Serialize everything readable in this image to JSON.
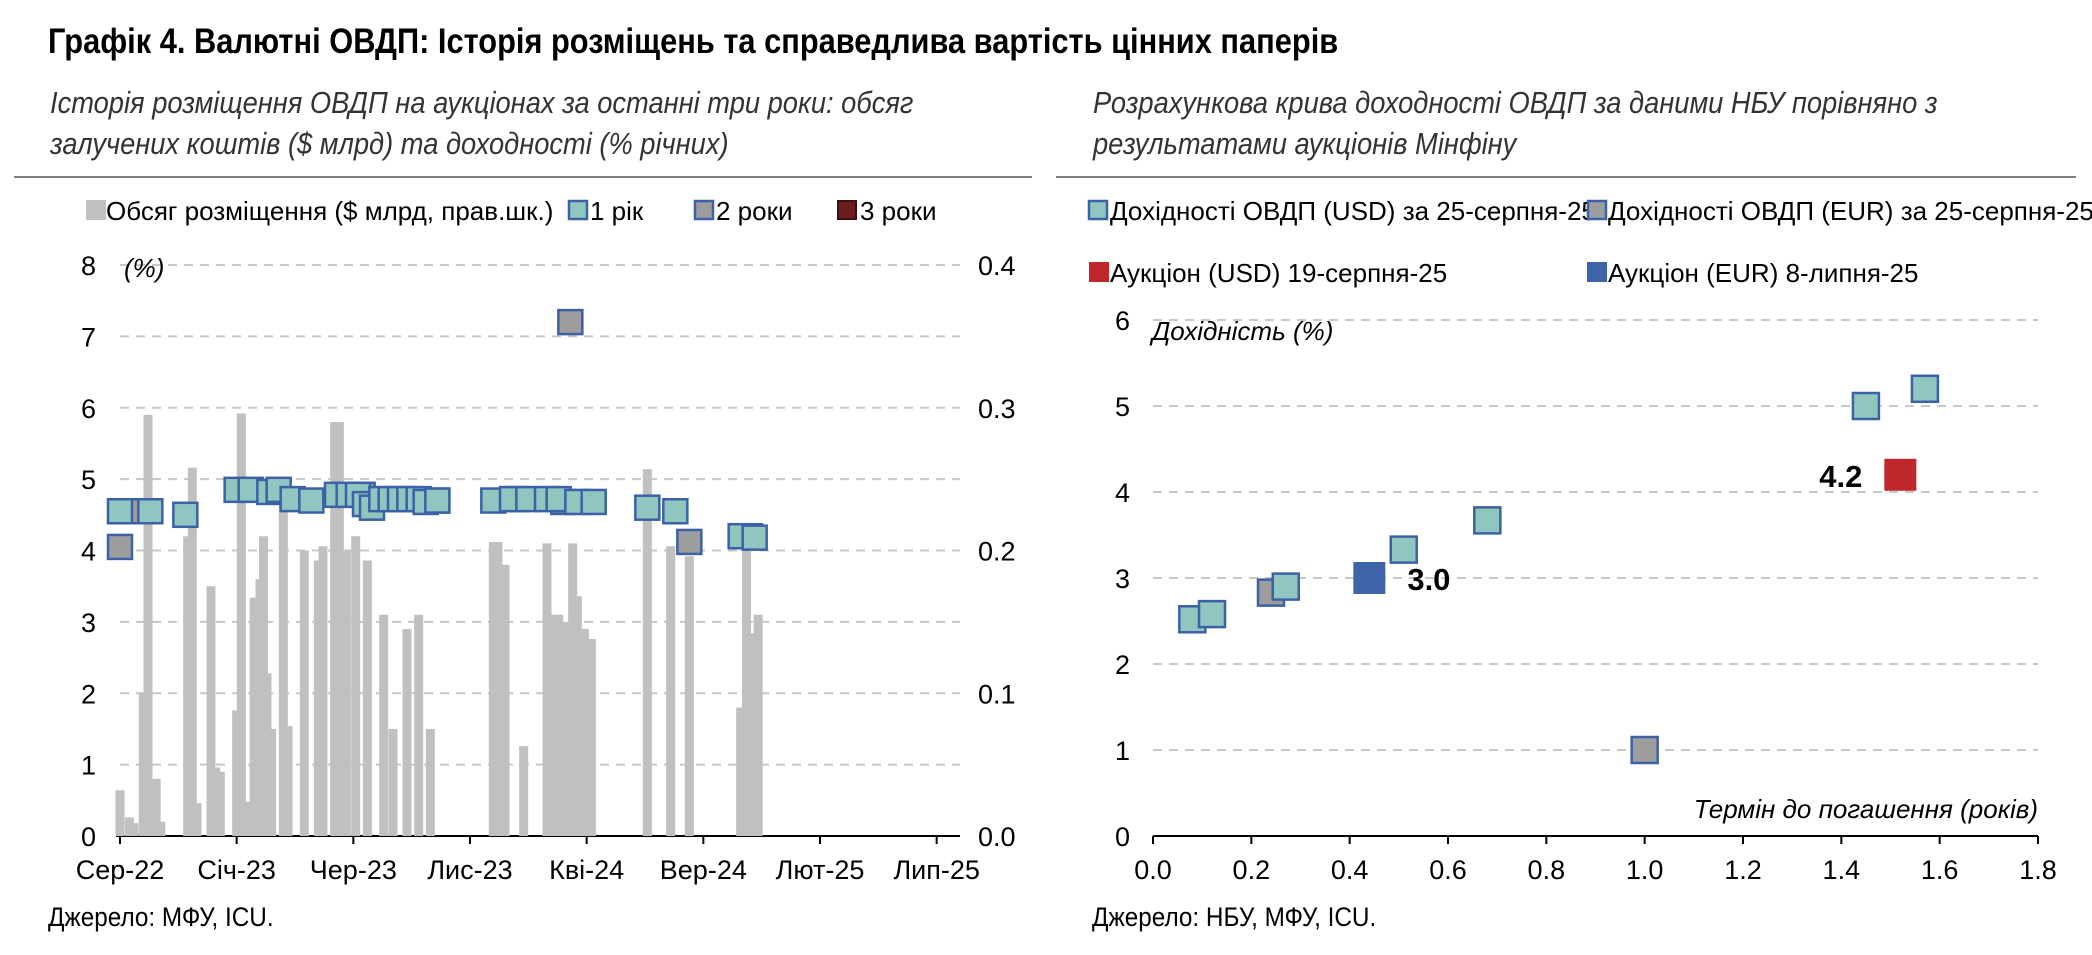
{
  "title": "Графік 4. Валютні ОВДП: Історія розміщень та справедлива вартість цінних паперів",
  "left": {
    "subtitle": "Історія розміщення ОВДП на аукціонах за останні три роки: обсяг залучених коштів ($ млрд) та доходності (% річних)",
    "source": "Джерело: МФУ, ICU."
  },
  "right": {
    "subtitle": "Розрахункова крива доходності ОВДП за даними НБУ порівняно з результатами аукціонів Мінфіну",
    "source": "Джерело: НБУ, МФУ, ICU."
  },
  "colors": {
    "bar": "#c0c0c0",
    "usd_fill": "#8fc6bf",
    "eur_fill": "#9d9d9d",
    "marker_edge": "#3c61a6",
    "three_year": "#6b1d1d",
    "auction_usd": "#c0272d",
    "auction_eur": "#3e63a8",
    "grid": "#c8c8c8"
  },
  "chart_data": [
    {
      "type": "scatter",
      "description_unit": "% / $ млрд",
      "ylabel": "(%)",
      "ylim": [
        0,
        8
      ],
      "yticks": [
        "0",
        "1",
        "2",
        "3",
        "4",
        "5",
        "6",
        "7",
        "8"
      ],
      "y2lim": [
        0,
        0.4
      ],
      "y2ticks": [
        "0.0",
        "0.1",
        "0.2",
        "0.3",
        "0.4"
      ],
      "x_categories": [
        "Сер-22",
        "Січ-23",
        "Чер-23",
        "Лис-23",
        "Кві-24",
        "Вер-24",
        "Лют-25",
        "Лип-25"
      ],
      "xlim_months": [
        0,
        36
      ],
      "legend": {
        "volume": "Обсяг розміщення ($ млрд, прав.шк.)",
        "y1": "1 рік",
        "y2": "2 роки",
        "y3": "3 роки"
      },
      "volume_series": [
        {
          "t": 0.0,
          "v": 0.032
        },
        {
          "t": 0.4,
          "v": 0.013
        },
        {
          "t": 0.6,
          "v": 0.009
        },
        {
          "t": 1.0,
          "v": 0.1
        },
        {
          "t": 1.2,
          "v": 0.295
        },
        {
          "t": 1.55,
          "v": 0.04
        },
        {
          "t": 1.75,
          "v": 0.01
        },
        {
          "t": 2.9,
          "v": 0.21
        },
        {
          "t": 3.1,
          "v": 0.258
        },
        {
          "t": 3.3,
          "v": 0.023
        },
        {
          "t": 3.9,
          "v": 0.175
        },
        {
          "t": 4.1,
          "v": 0.048
        },
        {
          "t": 4.3,
          "v": 0.045
        },
        {
          "t": 5.0,
          "v": 0.088
        },
        {
          "t": 5.2,
          "v": 0.296
        },
        {
          "t": 5.45,
          "v": 0.024
        },
        {
          "t": 5.75,
          "v": 0.167
        },
        {
          "t": 6.0,
          "v": 0.18
        },
        {
          "t": 6.15,
          "v": 0.21
        },
        {
          "t": 6.3,
          "v": 0.114
        },
        {
          "t": 6.5,
          "v": 0.075
        },
        {
          "t": 7.0,
          "v": 0.245
        },
        {
          "t": 7.2,
          "v": 0.077
        },
        {
          "t": 7.9,
          "v": 0.2
        },
        {
          "t": 8.5,
          "v": 0.193
        },
        {
          "t": 8.7,
          "v": 0.203
        },
        {
          "t": 9.2,
          "v": 0.29
        },
        {
          "t": 9.4,
          "v": 0.29
        },
        {
          "t": 9.7,
          "v": 0.2
        },
        {
          "t": 10.1,
          "v": 0.21
        },
        {
          "t": 10.6,
          "v": 0.193
        },
        {
          "t": 11.3,
          "v": 0.155
        },
        {
          "t": 11.7,
          "v": 0.075
        },
        {
          "t": 12.3,
          "v": 0.145
        },
        {
          "t": 12.8,
          "v": 0.155
        },
        {
          "t": 13.3,
          "v": 0.075
        },
        {
          "t": 16.0,
          "v": 0.206
        },
        {
          "t": 16.2,
          "v": 0.206
        },
        {
          "t": 16.5,
          "v": 0.19
        },
        {
          "t": 17.3,
          "v": 0.063
        },
        {
          "t": 18.3,
          "v": 0.205
        },
        {
          "t": 18.5,
          "v": 0.155
        },
        {
          "t": 18.8,
          "v": 0.155
        },
        {
          "t": 19.1,
          "v": 0.15
        },
        {
          "t": 19.4,
          "v": 0.205
        },
        {
          "t": 19.6,
          "v": 0.168
        },
        {
          "t": 19.9,
          "v": 0.145
        },
        {
          "t": 20.2,
          "v": 0.138
        },
        {
          "t": 22.6,
          "v": 0.257
        },
        {
          "t": 23.6,
          "v": 0.203
        },
        {
          "t": 24.4,
          "v": 0.196
        },
        {
          "t": 26.6,
          "v": 0.09
        },
        {
          "t": 26.85,
          "v": 0.215
        },
        {
          "t": 27.1,
          "v": 0.142
        },
        {
          "t": 27.35,
          "v": 0.155
        }
      ],
      "yield_1y": [
        {
          "t": 0.0,
          "y": 4.55
        },
        {
          "t": 1.3,
          "y": 4.55
        },
        {
          "t": 2.8,
          "y": 4.5
        },
        {
          "t": 5.0,
          "y": 4.85
        },
        {
          "t": 5.6,
          "y": 4.85
        },
        {
          "t": 6.4,
          "y": 4.82
        },
        {
          "t": 6.8,
          "y": 4.85
        },
        {
          "t": 7.4,
          "y": 4.72
        },
        {
          "t": 8.2,
          "y": 4.7
        },
        {
          "t": 9.3,
          "y": 4.78
        },
        {
          "t": 9.8,
          "y": 4.78
        },
        {
          "t": 10.2,
          "y": 4.78
        },
        {
          "t": 10.5,
          "y": 4.65
        },
        {
          "t": 10.8,
          "y": 4.6
        },
        {
          "t": 11.2,
          "y": 4.72
        },
        {
          "t": 11.6,
          "y": 4.72
        },
        {
          "t": 12.0,
          "y": 4.72
        },
        {
          "t": 12.4,
          "y": 4.72
        },
        {
          "t": 12.8,
          "y": 4.72
        },
        {
          "t": 13.1,
          "y": 4.68
        },
        {
          "t": 13.6,
          "y": 4.7
        },
        {
          "t": 16.0,
          "y": 4.7
        },
        {
          "t": 16.8,
          "y": 4.72
        },
        {
          "t": 17.5,
          "y": 4.72
        },
        {
          "t": 18.3,
          "y": 4.72
        },
        {
          "t": 18.8,
          "y": 4.72
        },
        {
          "t": 19.6,
          "y": 4.68
        },
        {
          "t": 20.3,
          "y": 4.68
        },
        {
          "t": 22.6,
          "y": 4.6
        },
        {
          "t": 23.8,
          "y": 4.55
        },
        {
          "t": 26.6,
          "y": 4.2
        },
        {
          "t": 27.2,
          "y": 4.18
        }
      ],
      "yield_2y": [
        {
          "t": 0.0,
          "y": 4.05
        },
        {
          "t": 0.8,
          "y": 4.55
        },
        {
          "t": 10.4,
          "y": 4.78
        },
        {
          "t": 13.6,
          "y": 4.7
        },
        {
          "t": 17.0,
          "y": 4.72
        },
        {
          "t": 19.0,
          "y": 4.68
        },
        {
          "t": 19.3,
          "y": 7.2
        },
        {
          "t": 24.4,
          "y": 4.12
        },
        {
          "t": 27.0,
          "y": 4.2
        }
      ],
      "yield_3y": []
    },
    {
      "type": "scatter",
      "ylabel": "Дохідність (%)",
      "xlabel": "Термін до погашення (років)",
      "xlim": [
        0,
        1.8
      ],
      "ylim": [
        0,
        6
      ],
      "xticks": [
        "0.0",
        "0.2",
        "0.4",
        "0.6",
        "0.8",
        "1.0",
        "1.2",
        "1.4",
        "1.6",
        "1.8"
      ],
      "yticks": [
        "0",
        "1",
        "2",
        "3",
        "4",
        "5",
        "6"
      ],
      "legend": {
        "usd": "Дохідності ОВДП (USD) за 25-серпня-25",
        "eur": "Дохідності ОВДП (EUR) за 25-серпня-25",
        "auction_usd": "Аукціон (USD) 19-серпня-25",
        "auction_eur": "Аукціон (EUR) 8-липня-25"
      },
      "usd_points": [
        {
          "x": 0.08,
          "y": 2.52
        },
        {
          "x": 0.12,
          "y": 2.58
        },
        {
          "x": 0.27,
          "y": 2.9
        },
        {
          "x": 0.51,
          "y": 3.33
        },
        {
          "x": 0.68,
          "y": 3.67
        },
        {
          "x": 1.45,
          "y": 5.0
        },
        {
          "x": 1.57,
          "y": 5.2
        }
      ],
      "eur_points": [
        {
          "x": 0.24,
          "y": 2.83
        },
        {
          "x": 1.0,
          "y": 1.0
        }
      ],
      "auction_usd": [
        {
          "x": 1.52,
          "y": 4.2,
          "label": "4.2"
        }
      ],
      "auction_eur": [
        {
          "x": 0.44,
          "y": 3.0,
          "label": "3.0"
        }
      ]
    }
  ]
}
